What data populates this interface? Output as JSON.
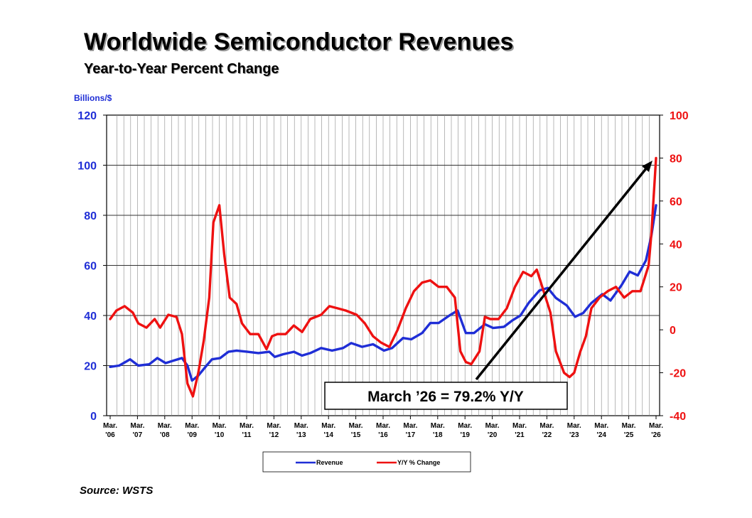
{
  "title": "Worldwide Semiconductor Revenues",
  "subtitle": "Year-to-Year Percent Change",
  "source": "Source: WSTS",
  "chart_data": {
    "type": "line",
    "y_left_label": "Billions/$",
    "y_left_range": [
      0,
      120
    ],
    "y_left_ticks": [
      "0",
      "20",
      "40",
      "60",
      "80",
      "100",
      "120"
    ],
    "y_right_range": [
      -40,
      100
    ],
    "y_right_ticks": [
      "-40",
      "-20",
      "0",
      "20",
      "40",
      "60",
      "80",
      "100"
    ],
    "x_tick_labels": [
      [
        "Mar.",
        "'06"
      ],
      [
        "Mar.",
        "'07"
      ],
      [
        "Mar.",
        "'08"
      ],
      [
        "Mar.",
        "'09"
      ],
      [
        "Mar.",
        "'10"
      ],
      [
        "Mar.",
        "'11"
      ],
      [
        "Mar.",
        "'12"
      ],
      [
        "Mar.",
        "'13"
      ],
      [
        "Mar.",
        "'14"
      ],
      [
        "Mar.",
        "'15"
      ],
      [
        "Mar.",
        "'16"
      ],
      [
        "Mar.",
        "'17"
      ],
      [
        "Mar.",
        "'18"
      ],
      [
        "Mar.",
        "'19"
      ],
      [
        "Mar.",
        "'20"
      ],
      [
        "Mar.",
        "'21"
      ],
      [
        "Mar.",
        "'22"
      ],
      [
        "Mar.",
        "'23"
      ],
      [
        "Mar.",
        "'24"
      ],
      [
        "Mar.",
        "'25"
      ],
      [
        "Mar.",
        "'26"
      ]
    ],
    "grid": true,
    "legend_position": "bottom-center",
    "annotation": "March ’26 = 79.2% Y/Y",
    "series": [
      {
        "name": "Revenue",
        "axis": "left",
        "color": "#1f2ed6",
        "x": [
          2006.17,
          2006.5,
          2006.9,
          2007.2,
          2007.6,
          2007.9,
          2008.2,
          2008.5,
          2008.8,
          2009.0,
          2009.17,
          2009.4,
          2009.7,
          2009.9,
          2010.2,
          2010.5,
          2010.8,
          2011.2,
          2011.6,
          2012.0,
          2012.2,
          2012.5,
          2012.9,
          2013.2,
          2013.5,
          2013.9,
          2014.3,
          2014.7,
          2015.0,
          2015.4,
          2015.8,
          2016.2,
          2016.5,
          2016.9,
          2017.2,
          2017.6,
          2017.9,
          2018.2,
          2018.6,
          2018.9,
          2019.2,
          2019.5,
          2019.9,
          2020.2,
          2020.6,
          2020.9,
          2021.2,
          2021.5,
          2021.9,
          2022.2,
          2022.5,
          2022.9,
          2023.2,
          2023.5,
          2023.8,
          2024.2,
          2024.5,
          2024.9,
          2025.2,
          2025.5,
          2025.8,
          2026.0,
          2026.17
        ],
        "values": [
          19.5,
          20,
          22.5,
          20,
          20.5,
          23,
          21,
          22,
          23,
          20,
          14,
          16,
          20,
          22.5,
          23,
          25.5,
          26,
          25.5,
          25,
          25.5,
          23.5,
          24.5,
          25.5,
          24,
          25,
          27,
          26,
          27,
          29,
          27.5,
          28.5,
          26,
          27,
          31,
          30.5,
          33,
          37,
          37,
          40,
          42,
          33,
          33,
          36.5,
          35,
          35.5,
          38,
          40,
          45,
          50,
          51,
          47,
          44,
          39.5,
          41,
          45,
          48.5,
          46,
          52,
          57.5,
          56,
          62,
          72,
          84
        ]
      },
      {
        "name": "Y/Y % Change",
        "axis": "right",
        "color": "#ee1111",
        "x": [
          2006.17,
          2006.4,
          2006.7,
          2007.0,
          2007.2,
          2007.5,
          2007.8,
          2008.0,
          2008.3,
          2008.6,
          2008.8,
          2009.0,
          2009.2,
          2009.4,
          2009.6,
          2009.8,
          2009.95,
          2010.17,
          2010.35,
          2010.55,
          2010.8,
          2011.0,
          2011.3,
          2011.6,
          2011.9,
          2012.1,
          2012.3,
          2012.6,
          2012.9,
          2013.2,
          2013.5,
          2013.9,
          2014.2,
          2014.5,
          2014.8,
          2015.2,
          2015.5,
          2015.8,
          2016.1,
          2016.4,
          2016.7,
          2017.0,
          2017.3,
          2017.6,
          2017.9,
          2018.2,
          2018.5,
          2018.8,
          2019.0,
          2019.2,
          2019.4,
          2019.7,
          2019.9,
          2020.1,
          2020.4,
          2020.7,
          2021.0,
          2021.3,
          2021.6,
          2021.8,
          2022.0,
          2022.3,
          2022.5,
          2022.8,
          2023.0,
          2023.17,
          2023.4,
          2023.6,
          2023.8,
          2024.1,
          2024.4,
          2024.7,
          2025.0,
          2025.3,
          2025.6,
          2025.9,
          2026.0,
          2026.17
        ],
        "values": [
          5,
          9,
          11,
          8,
          3,
          1,
          5,
          1,
          7,
          6,
          -2,
          -25,
          -31,
          -20,
          -5,
          15,
          50,
          58,
          35,
          15,
          12,
          3,
          -2,
          -2,
          -9,
          -3,
          -2,
          -2,
          2,
          -1,
          5,
          7,
          11,
          10,
          9,
          7,
          3,
          -3,
          -6,
          -8,
          0,
          10,
          18,
          22,
          23,
          20,
          20,
          15,
          -10,
          -15,
          -16,
          -10,
          6,
          5,
          5,
          10,
          20,
          27,
          25,
          28,
          20,
          8,
          -10,
          -20,
          -22,
          -20,
          -10,
          -3,
          10,
          15,
          18,
          20,
          15,
          18,
          18,
          30,
          45,
          80
        ]
      }
    ]
  }
}
